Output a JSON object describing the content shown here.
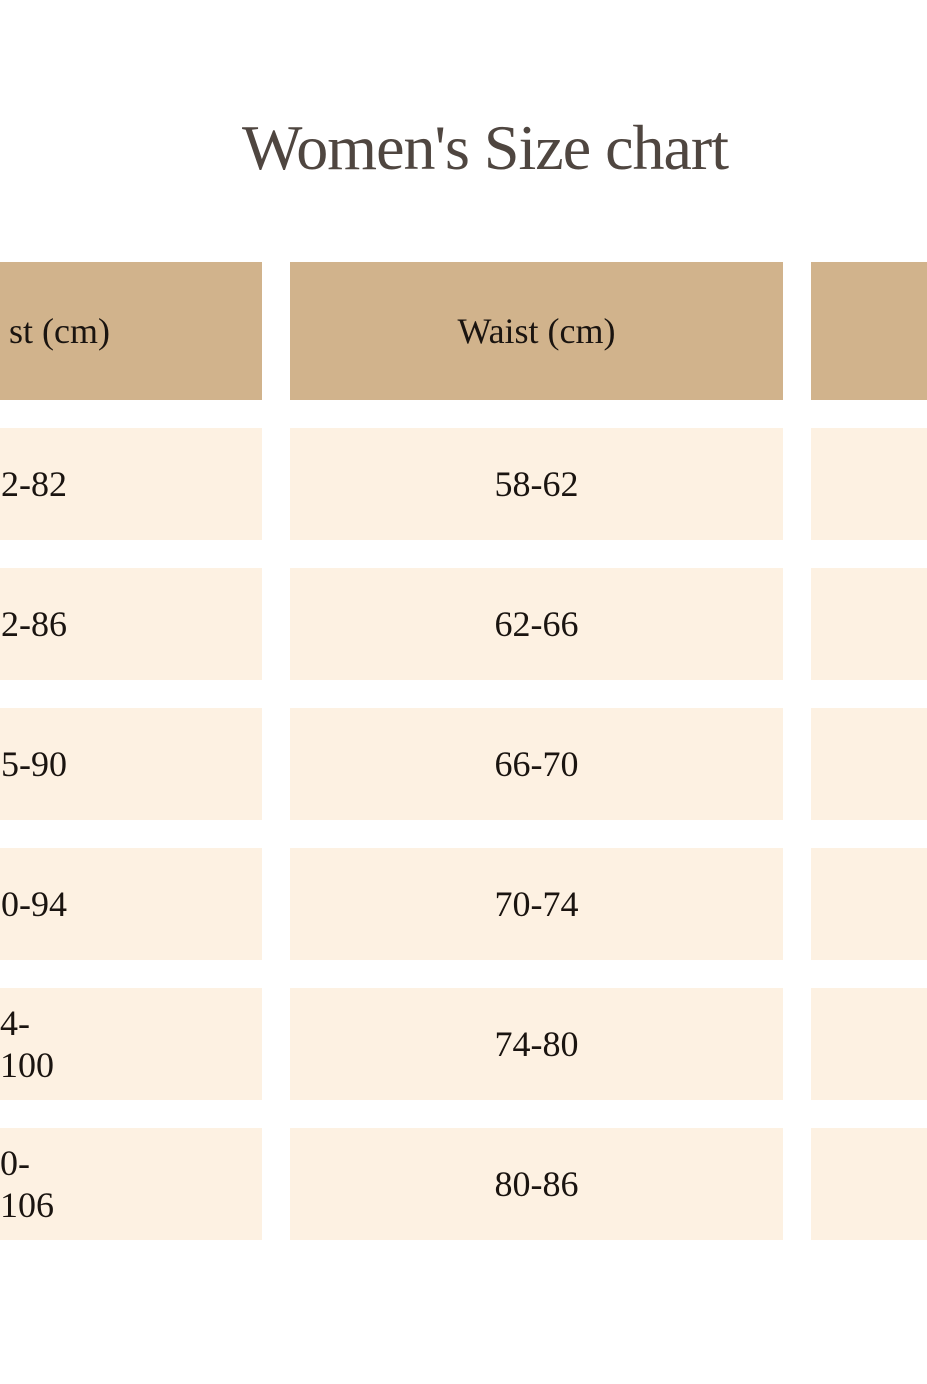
{
  "title": "Women's Size chart",
  "colors": {
    "header": "#d1b38c",
    "row": "#fdf1e2",
    "title": "#4f4640"
  },
  "columns": [
    {
      "header": "st (cm)",
      "values": [
        "2-82",
        "2-86",
        "5-90",
        "0-94",
        "4-100",
        "0-106"
      ]
    },
    {
      "header": "Waist (cm)",
      "values": [
        "58-62",
        "62-66",
        "66-70",
        "70-74",
        "74-80",
        "80-86"
      ]
    },
    {
      "header": "",
      "values": [
        "",
        "",
        "",
        "",
        "",
        ""
      ]
    }
  ]
}
